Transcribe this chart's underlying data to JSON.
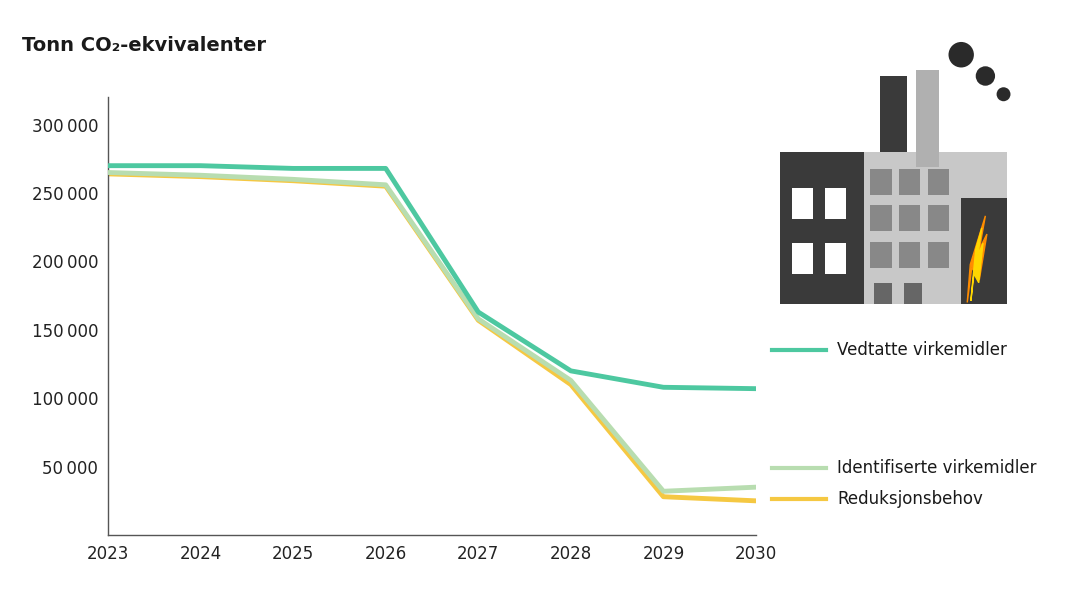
{
  "title": "Tonn CO₂-ekvivalenter",
  "years": [
    2023,
    2024,
    2025,
    2026,
    2027,
    2028,
    2029,
    2030
  ],
  "vedtatte": [
    270000,
    270000,
    268000,
    268000,
    163000,
    120000,
    108000,
    107000
  ],
  "identifiserte": [
    265000,
    263000,
    260000,
    256000,
    158000,
    113000,
    32000,
    35000
  ],
  "reduksjon": [
    264000,
    262000,
    259000,
    255000,
    157000,
    110000,
    28000,
    25000
  ],
  "color_vedtatte": "#4DC8A0",
  "color_identifiserte": "#B8DDB0",
  "color_reduksjon": "#F5C842",
  "linewidth": 3.5,
  "ylim": [
    0,
    320000
  ],
  "yticks": [
    50000,
    100000,
    150000,
    200000,
    250000,
    300000
  ],
  "background_color": "#ffffff",
  "legend_vedtatte": "Vedtatte virkemidler",
  "legend_identifiserte": "Identifiserte virkemidler",
  "legend_reduksjon": "Reduksjonsbehov",
  "factory_body_color": "#c8c8c8",
  "factory_dark_color": "#3a3a3a",
  "factory_chimney_light": "#b0b0b0",
  "factory_grid_color": "#888888",
  "smoke_color": "#2a2a2a",
  "flame_outer": "#FF8C00",
  "flame_inner": "#FFD700"
}
